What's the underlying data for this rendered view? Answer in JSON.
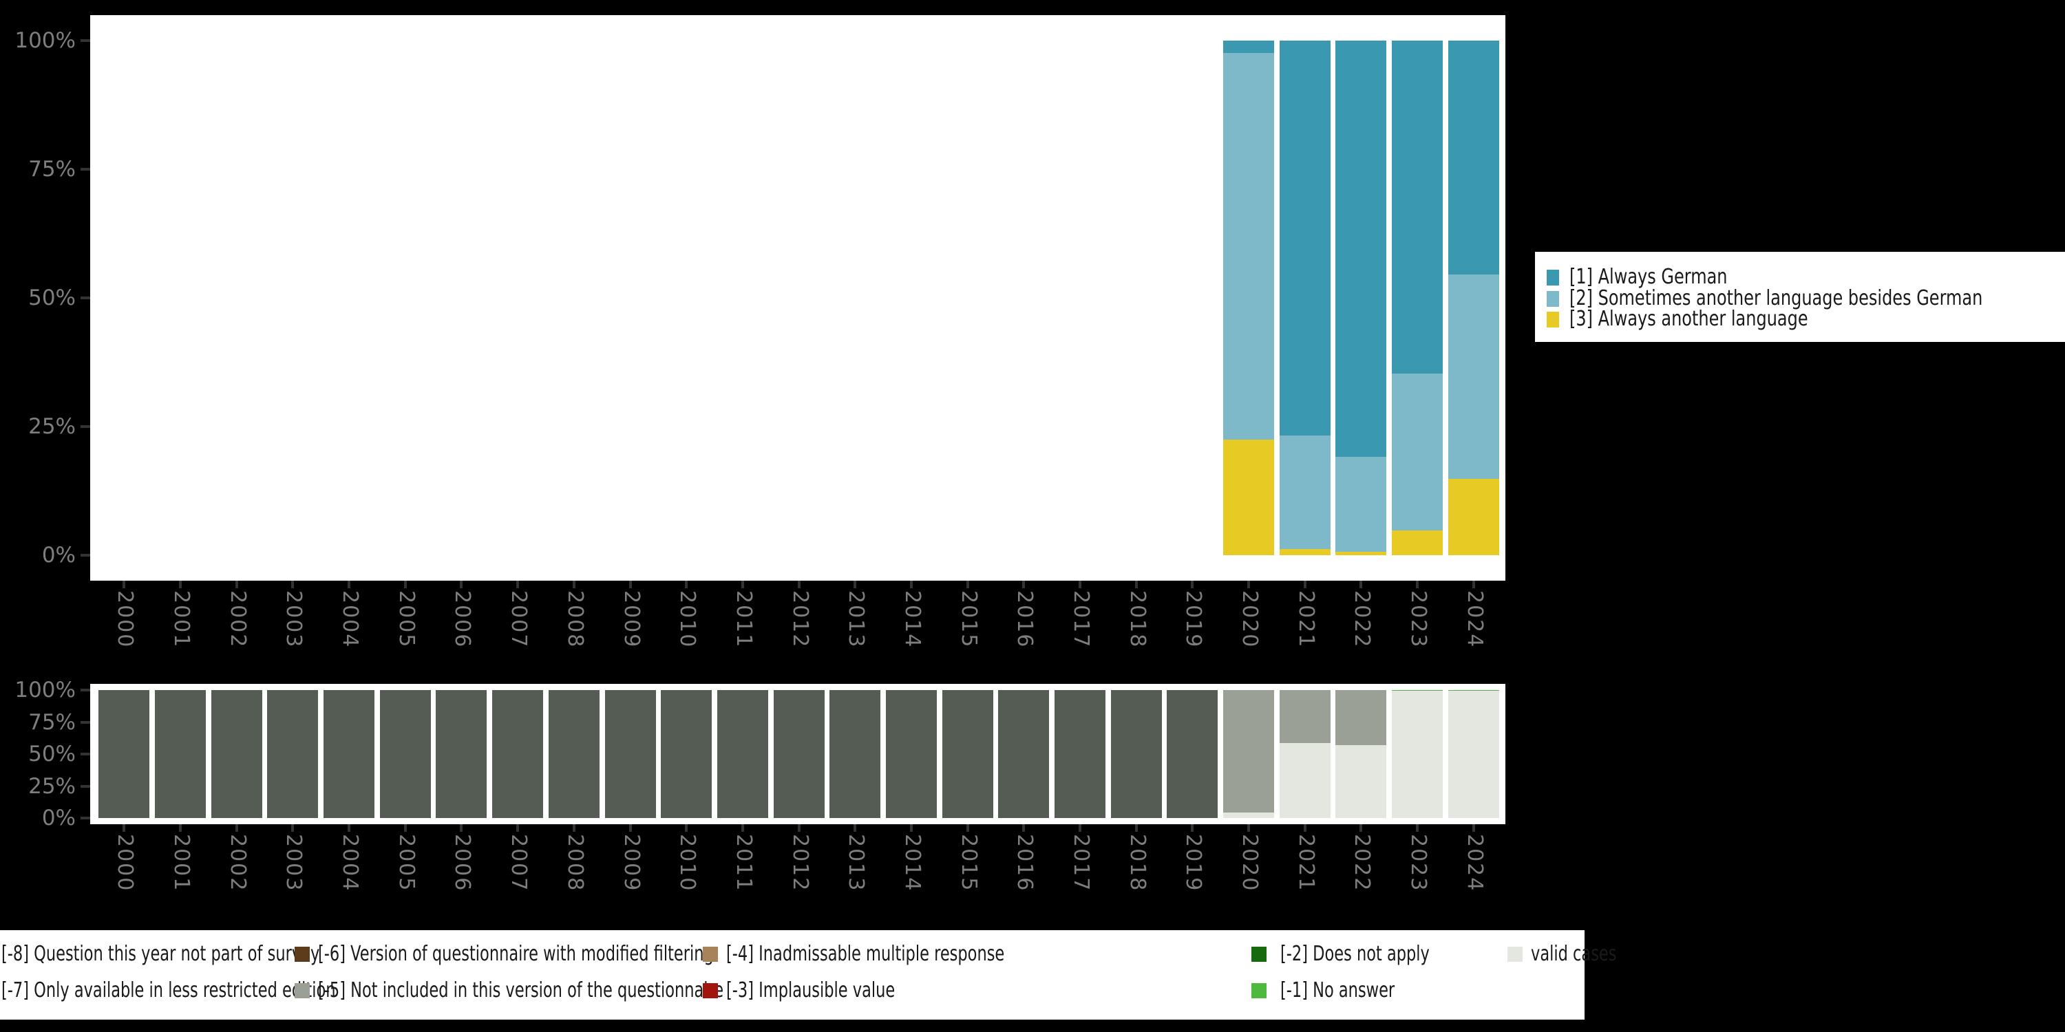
{
  "figure": {
    "background": "#000000",
    "panel_background": "#ffffff"
  },
  "palette": {
    "always_german": "#3a99b1",
    "sometimes_other_language": "#7db9c8",
    "always_another_language": "#e8ca25",
    "question_not_part_of_survey": "#545c54",
    "restricted_edition_gray": "#9aa096",
    "valid_cases": "#e3e7e0",
    "no_answer_green": "#4fb83e",
    "modified_filtering_brown": "#5d3c1b",
    "not_included_gray": "#9aa096",
    "inadmissable_tan": "#a8835a",
    "implausible_dark_red": "#a1150e",
    "does_not_apply_dark_green": "#186a0f",
    "axis_text": "#7e7e7e",
    "tick_mark": "#333333",
    "legend_text": "#1a1a1a"
  },
  "axes": {
    "y_tick_labels": [
      "100%",
      "75%",
      "50%",
      "25%",
      "0%"
    ],
    "y_tick_values": [
      100,
      75,
      50,
      25,
      0
    ],
    "years": [
      "2000",
      "2001",
      "2002",
      "2003",
      "2004",
      "2005",
      "2006",
      "2007",
      "2008",
      "2009",
      "2010",
      "2011",
      "2012",
      "2013",
      "2014",
      "2015",
      "2016",
      "2017",
      "2018",
      "2019",
      "2020",
      "2021",
      "2022",
      "2023",
      "2024"
    ]
  },
  "chart_data": [
    {
      "type": "bar",
      "stacked": true,
      "title": "",
      "xlabel": "",
      "ylabel": "",
      "ylim": [
        0,
        100
      ],
      "unit": "percent of valid cases",
      "grid": false,
      "legend_position": "right",
      "categories": [
        "2000",
        "2001",
        "2002",
        "2003",
        "2004",
        "2005",
        "2006",
        "2007",
        "2008",
        "2009",
        "2010",
        "2011",
        "2012",
        "2013",
        "2014",
        "2015",
        "2016",
        "2017",
        "2018",
        "2019",
        "2020",
        "2021",
        "2022",
        "2023",
        "2024"
      ],
      "series_bottom_to_top": [
        {
          "name": "[3] Always another language",
          "color_key": "always_another_language",
          "values": [
            0,
            0,
            0,
            0,
            0,
            0,
            0,
            0,
            0,
            0,
            0,
            0,
            0,
            0,
            0,
            0,
            0,
            0,
            0,
            0,
            22.5,
            1.2,
            0.7,
            4.8,
            14.9
          ]
        },
        {
          "name": "[2] Sometimes another language besides German",
          "color_key": "sometimes_other_language",
          "values": [
            0,
            0,
            0,
            0,
            0,
            0,
            0,
            0,
            0,
            0,
            0,
            0,
            0,
            0,
            0,
            0,
            0,
            0,
            0,
            0,
            75.1,
            22.1,
            18.4,
            30.5,
            39.6
          ]
        },
        {
          "name": "[1] Always German",
          "color_key": "always_german",
          "values": [
            0,
            0,
            0,
            0,
            0,
            0,
            0,
            0,
            0,
            0,
            0,
            0,
            0,
            0,
            0,
            0,
            0,
            0,
            0,
            0,
            2.4,
            76.7,
            80.9,
            64.7,
            45.5
          ]
        }
      ]
    },
    {
      "type": "bar",
      "stacked": true,
      "title": "",
      "xlabel": "",
      "ylabel": "",
      "ylim": [
        0,
        100
      ],
      "unit": "percent of all cases (missing breakdown)",
      "grid": false,
      "legend_position": "bottom",
      "categories": [
        "2000",
        "2001",
        "2002",
        "2003",
        "2004",
        "2005",
        "2006",
        "2007",
        "2008",
        "2009",
        "2010",
        "2011",
        "2012",
        "2013",
        "2014",
        "2015",
        "2016",
        "2017",
        "2018",
        "2019",
        "2020",
        "2021",
        "2022",
        "2023",
        "2024"
      ],
      "series_bottom_to_top": [
        {
          "name": "valid cases",
          "color_key": "valid_cases",
          "values": [
            0,
            0,
            0,
            0,
            0,
            0,
            0,
            0,
            0,
            0,
            0,
            0,
            0,
            0,
            0,
            0,
            0,
            0,
            0,
            0,
            4.5,
            58.5,
            57.0,
            99.3,
            99.3
          ]
        },
        {
          "name": "[-1] No answer",
          "color_key": "no_answer_green",
          "values": [
            0,
            0,
            0,
            0,
            0,
            0,
            0,
            0,
            0,
            0,
            0,
            0,
            0,
            0,
            0,
            0,
            0,
            0,
            0,
            0,
            0,
            0,
            0,
            0.7,
            0.7
          ]
        },
        {
          "name": "[-7] Only available in less restricted edition",
          "color_key": "restricted_edition_gray",
          "values": [
            0,
            0,
            0,
            0,
            0,
            0,
            0,
            0,
            0,
            0,
            0,
            0,
            0,
            0,
            0,
            0,
            0,
            0,
            0,
            0,
            95.5,
            41.5,
            43.0,
            0,
            0
          ]
        },
        {
          "name": "[-8] Question this year not part of survey",
          "color_key": "question_not_part_of_survey",
          "values": [
            100,
            100,
            100,
            100,
            100,
            100,
            100,
            100,
            100,
            100,
            100,
            100,
            100,
            100,
            100,
            100,
            100,
            100,
            100,
            100,
            0,
            0,
            0,
            0,
            0
          ]
        }
      ]
    }
  ],
  "legend_top": {
    "items": [
      {
        "label": "[1] Always German",
        "color_key": "always_german"
      },
      {
        "label": "[2] Sometimes another language besides German",
        "color_key": "sometimes_other_language"
      },
      {
        "label": "[3] Always another language",
        "color_key": "always_another_language"
      }
    ]
  },
  "legend_bottom": {
    "rows": [
      [
        {
          "label": "[-8] Question this year not part of survey",
          "color_key": "question_not_part_of_survey",
          "key_clipped": true
        },
        {
          "label": "[-6] Version of questionnaire with modified filtering",
          "color_key": "modified_filtering_brown"
        },
        {
          "label": "[-4] Inadmissable multiple response",
          "color_key": "inadmissable_tan"
        },
        {
          "label": "[-2] Does not apply",
          "color_key": "does_not_apply_dark_green"
        },
        {
          "label": "valid cases",
          "color_key": "valid_cases"
        }
      ],
      [
        {
          "label": "[-7] Only available in less restricted edition",
          "color_key": "restricted_edition_gray",
          "key_clipped": true
        },
        {
          "label": "[-5] Not included in this version of the questionnaire",
          "color_key": "not_included_gray"
        },
        {
          "label": "[-3] Implausible value",
          "color_key": "implausible_dark_red"
        },
        {
          "label": "[-1] No answer",
          "color_key": "no_answer_green"
        }
      ]
    ]
  }
}
